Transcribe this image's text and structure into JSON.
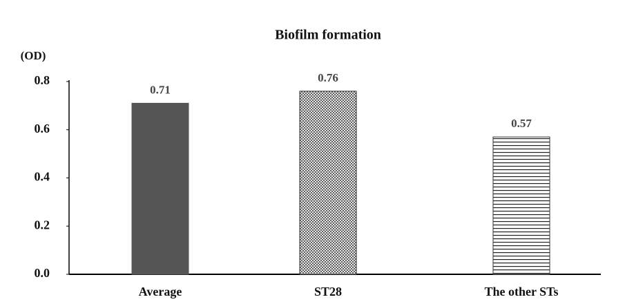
{
  "chart_data": {
    "type": "bar",
    "title": "Biofilm formation",
    "y_label": "(OD)",
    "categories": [
      "Average",
      "ST28",
      "The other STs"
    ],
    "values": [
      0.71,
      0.76,
      0.57
    ],
    "color": "#555555",
    "bar_styles": [
      "solid",
      "dots",
      "stripes"
    ],
    "ylim": [
      0,
      0.8
    ],
    "yticks": [
      {
        "value": 0,
        "label": "0.0"
      },
      0.2,
      0.4,
      0.6,
      0.8
    ],
    "grid": false
  }
}
